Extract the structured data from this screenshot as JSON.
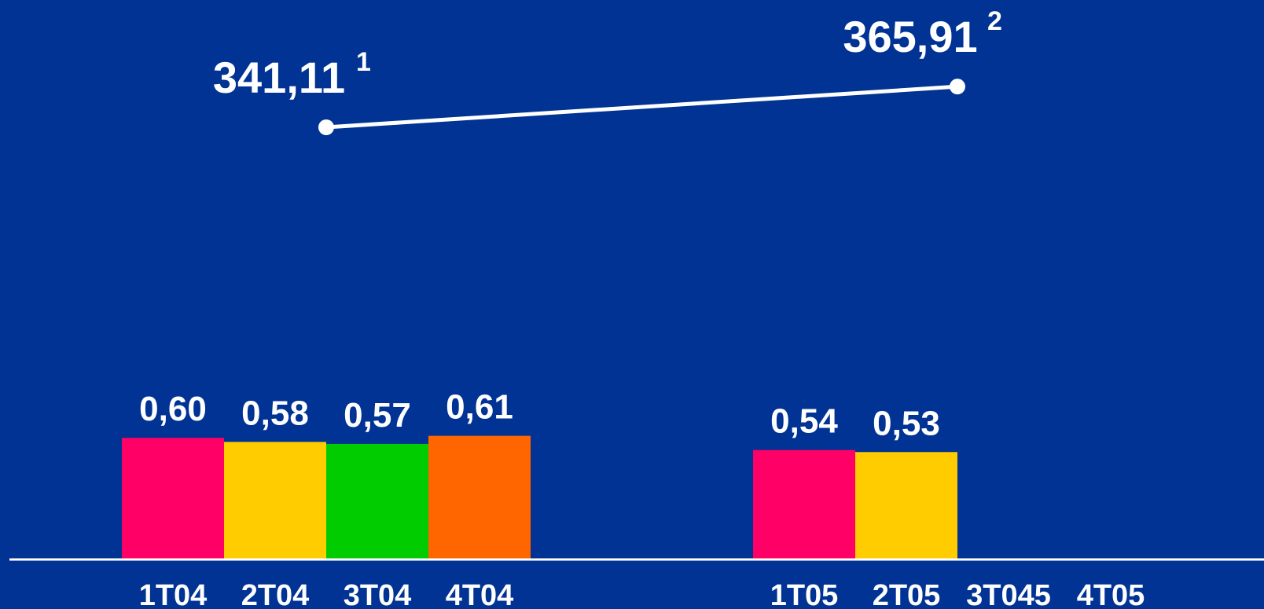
{
  "chart_data": {
    "type": "bar",
    "categories": [
      "1T04",
      "2T04",
      "3T04",
      "4T04",
      "1T05",
      "2T05",
      "3T045",
      "4T05"
    ],
    "series": [
      {
        "values": [
          0.6,
          0.58,
          0.57,
          0.61,
          0.54,
          0.53,
          null,
          null
        ],
        "value_labels": [
          "0,60",
          "0,58",
          "0,57",
          "0,61",
          "0,54",
          "0,53",
          "",
          ""
        ],
        "colors": [
          "#FF0066",
          "#FFCC00",
          "#00CC00",
          "#FF6600",
          "#FF0066",
          "#FFCC00",
          "",
          ""
        ]
      }
    ],
    "line": {
      "points": [
        {
          "label": "341,11",
          "value": 341.11,
          "note": "1"
        },
        {
          "label": "365,91",
          "value": 365.91,
          "note": "2"
        }
      ],
      "color": "#ffffff"
    },
    "background": "#003393",
    "title": "",
    "xlabel": "",
    "ylabel": "",
    "grid": false,
    "legend": "none"
  }
}
